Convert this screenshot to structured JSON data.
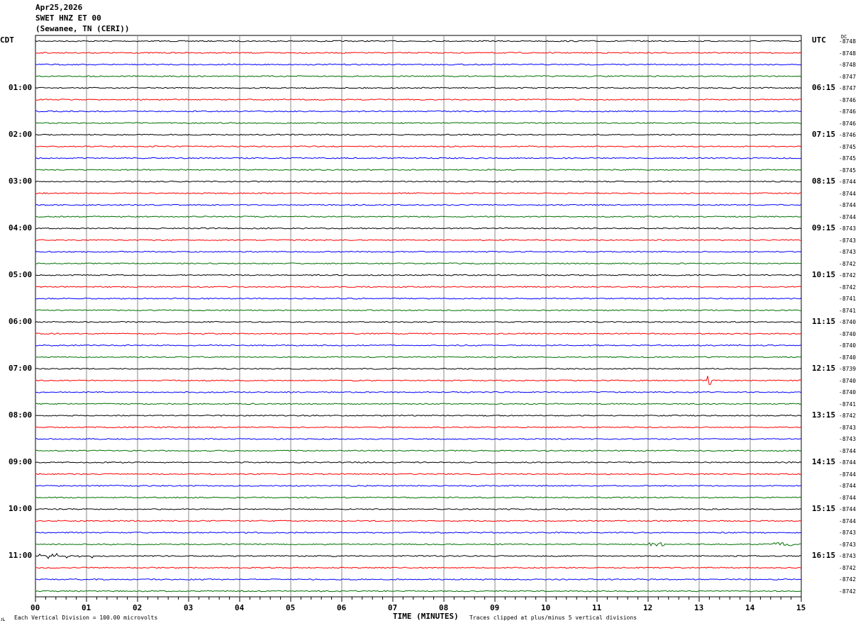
{
  "header": {
    "date": "Apr25,2026",
    "station": "SWET HNZ ET 00",
    "location": "(Sewanee, TN (CERI))"
  },
  "chart_data": {
    "type": "line",
    "title": "SWET HNZ ET 00",
    "xlabel": "TIME (MINUTES)",
    "xlim": [
      0,
      15
    ],
    "x_ticks": [
      "00",
      "01",
      "02",
      "03",
      "04",
      "05",
      "06",
      "07",
      "08",
      "09",
      "10",
      "11",
      "12",
      "13",
      "14",
      "15"
    ],
    "left_axis_label": "CDT",
    "right_axis_label": "UTC",
    "dc_label": "DC",
    "left_hour_labels": [
      "01:00",
      "02:00",
      "03:00",
      "04:00",
      "05:00",
      "06:00",
      "07:00",
      "08:00",
      "09:00",
      "10:00",
      "11:00"
    ],
    "right_hour_labels": [
      "06:15",
      "07:15",
      "08:15",
      "09:15",
      "10:15",
      "11:15",
      "12:15",
      "13:15",
      "14:15",
      "15:15",
      "16:15"
    ],
    "trace_colors": [
      "#000000",
      "#ff0000",
      "#0000ff",
      "#007000"
    ],
    "trace_count": 48,
    "dc_offsets": [
      "-8748",
      "-8748",
      "-8748",
      "-8747",
      "-8747",
      "-8746",
      "-8746",
      "-8746",
      "-8746",
      "-8745",
      "-8745",
      "-8745",
      "-8744",
      "-8744",
      "-8744",
      "-8744",
      "-8743",
      "-8743",
      "-8743",
      "-8742",
      "-8742",
      "-8742",
      "-8741",
      "-8741",
      "-8740",
      "-8740",
      "-8740",
      "-8740",
      "-8739",
      "-8740",
      "-8740",
      "-8741",
      "-8742",
      "-8743",
      "-8743",
      "-8744",
      "-8744",
      "-8744",
      "-8744",
      "-8744",
      "-8744",
      "-8744",
      "-8743",
      "-8743",
      "-8743",
      "-8742",
      "-8742",
      "-8742"
    ],
    "scale_note": "Each Vertical Division =  100.00 microvolts",
    "clip_note": "Traces clipped at plus/minus 5 vertical divisions",
    "grid": true
  }
}
